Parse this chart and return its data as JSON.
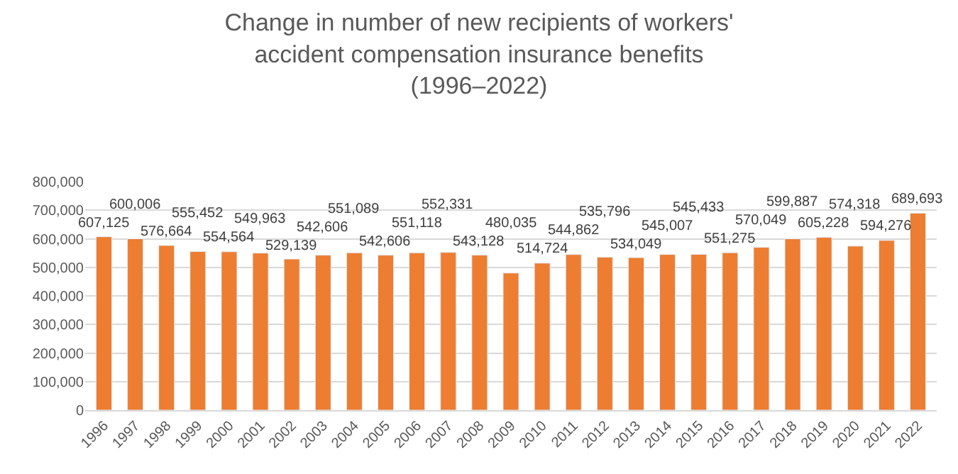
{
  "chart_data": {
    "type": "bar",
    "title": "Change in number of new recipients of workers' accident compensation insurance benefits (1996–2022)",
    "categories": [
      "1996",
      "1997",
      "1998",
      "1999",
      "2000",
      "2001",
      "2002",
      "2003",
      "2004",
      "2005",
      "2006",
      "2007",
      "2008",
      "2009",
      "2010",
      "2011",
      "2012",
      "2013",
      "2014",
      "2015",
      "2016",
      "2017",
      "2018",
      "2019",
      "2020",
      "2021",
      "2022"
    ],
    "values": [
      607125,
      600006,
      576664,
      555452,
      554564,
      549963,
      529139,
      542606,
      551089,
      542606,
      551118,
      552331,
      543128,
      480035,
      514724,
      544862,
      535796,
      534049,
      545007,
      545433,
      551275,
      570049,
      599887,
      605228,
      574318,
      594276,
      689693
    ],
    "color": "#ed7d31",
    "ylim": [
      0,
      800000
    ],
    "yticks": [
      {
        "value": 0,
        "label": "0"
      },
      {
        "value": 100000,
        "label": "100,000"
      },
      {
        "value": 200000,
        "label": "200,000"
      },
      {
        "value": 300000,
        "label": "300,000"
      },
      {
        "value": 400000,
        "label": "400,000"
      },
      {
        "value": 500000,
        "label": "500,000"
      },
      {
        "value": 600000,
        "label": "600,000"
      },
      {
        "value": 700000,
        "label": "700,000"
      },
      {
        "value": 800000,
        "label": "800,000"
      }
    ],
    "grid": "y",
    "legend": false,
    "value_labels": [
      "607,125",
      "600,006",
      "576,664",
      "555,452",
      "554,564",
      "549,963",
      "529,139",
      "542,606",
      "551,089",
      "542,606",
      "551,118",
      "552,331",
      "543,128",
      "480,035",
      "514,724",
      "544,862",
      "535,796",
      "534,049",
      "545,007",
      "545,433",
      "551,275",
      "570,049",
      "599,887",
      "605,228",
      "574,318",
      "594,276",
      "689,693"
    ]
  }
}
